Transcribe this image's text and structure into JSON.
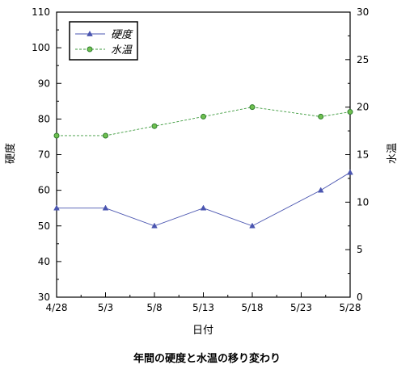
{
  "chart_data": {
    "type": "line",
    "caption": "年間の硬度と水温の移り変わり",
    "xlabel": "日付",
    "ylabel_left": "硬度",
    "ylabel_right": "水温",
    "x_range": [
      "4/28",
      "5/28"
    ],
    "x_ticks": [
      "4/28",
      "5/3",
      "5/8",
      "5/13",
      "5/18",
      "5/23",
      "5/28"
    ],
    "y_left": {
      "min": 30,
      "max": 110,
      "step": 10,
      "ticks": [
        "30",
        "40",
        "50",
        "60",
        "70",
        "80",
        "90",
        "100",
        "110"
      ]
    },
    "y_right": {
      "min": 0,
      "max": 30,
      "step": 5,
      "ticks": [
        "0",
        "5",
        "10",
        "15",
        "20",
        "25",
        "30"
      ]
    },
    "grid": false,
    "legend_position": "top-left",
    "series": [
      {
        "name": "硬度",
        "axis": "left",
        "color": "#4a55b0",
        "line": "solid",
        "marker": "triangle",
        "x": [
          "4/28",
          "5/3",
          "5/8",
          "5/13",
          "5/18",
          "5/25",
          "5/28"
        ],
        "values": [
          55,
          55,
          50,
          55,
          50,
          60,
          65
        ]
      },
      {
        "name": "水温",
        "axis": "right",
        "color": "#3c9a3c",
        "line": "dashed",
        "marker": "circle",
        "x": [
          "4/28",
          "5/3",
          "5/8",
          "5/13",
          "5/18",
          "5/25",
          "5/28"
        ],
        "values": [
          17,
          17,
          18,
          19,
          20,
          19,
          19.5
        ]
      }
    ]
  }
}
